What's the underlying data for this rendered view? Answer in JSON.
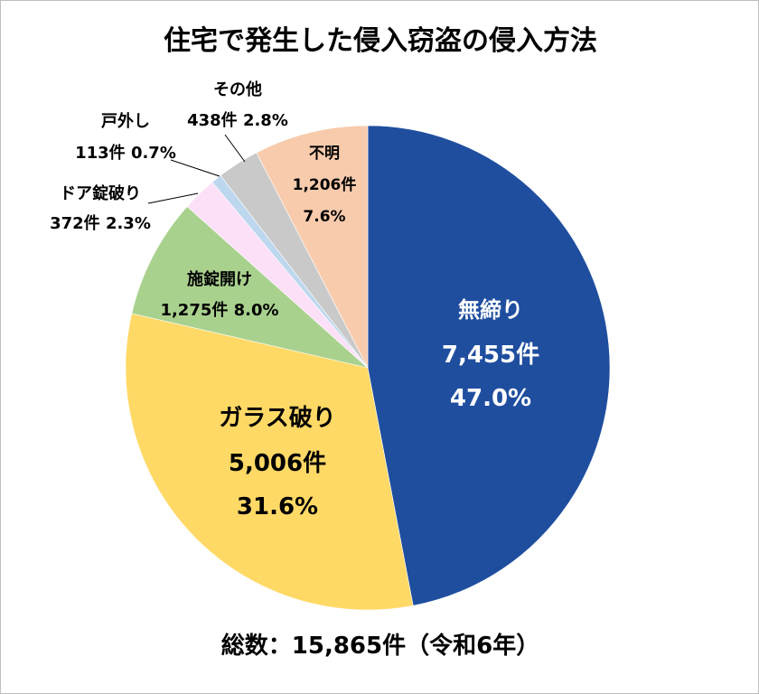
{
  "chart_data": {
    "type": "pie",
    "title": "住宅で発生した侵入窃盗の侵入方法",
    "footer": "総数：15,865件（令和6年）",
    "start_angle": "12 o'clock",
    "direction": "clockwise",
    "slices": [
      {
        "label": "無締り",
        "count": "7,455件",
        "percent": 47.0,
        "percent_label": "47.0%",
        "color": "#1F4E9F",
        "text_color": "#ffffff"
      },
      {
        "label": "ガラス破り",
        "count": "5,006件",
        "percent": 31.6,
        "percent_label": "31.6%",
        "color": "#FFD966",
        "text_color": "#000000"
      },
      {
        "label": "施錠開け",
        "count": "1,275件",
        "percent": 8.0,
        "percent_label": "8.0%",
        "color": "#A9D18E",
        "text_color": "#000000"
      },
      {
        "label": "ドア錠破り",
        "count": "372件",
        "percent": 2.3,
        "percent_label": "2.3%",
        "color": "#FCE0F7",
        "text_color": "#000000"
      },
      {
        "label": "戸外し",
        "count": "113件",
        "percent": 0.7,
        "percent_label": "0.7%",
        "color": "#BDD7EE",
        "text_color": "#000000"
      },
      {
        "label": "その他",
        "count": "438件",
        "percent": 2.8,
        "percent_label": "2.8%",
        "color": "#C9C9C9",
        "text_color": "#000000"
      },
      {
        "label": "不明",
        "count": "1,206件",
        "percent": 7.6,
        "percent_label": "7.6%",
        "color": "#F8CBAD",
        "text_color": "#000000"
      }
    ]
  }
}
